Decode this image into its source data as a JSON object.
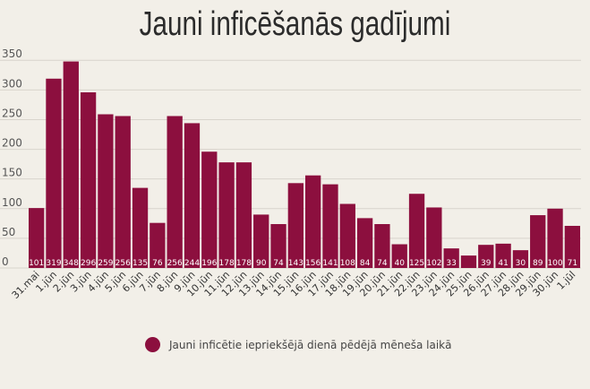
{
  "chart_data": {
    "type": "bar",
    "title": "Jauni inficēšanās gadījumi",
    "categories": [
      "31.mai",
      "1.jūn",
      "2.jūn",
      "3.jūn",
      "4.jūn",
      "5.jūn",
      "6.jūn",
      "7.jūn",
      "8.jūn",
      "9.jūn",
      "10.jūn",
      "11.jūn",
      "12.jūn",
      "13.jūn",
      "14.jūn",
      "15.jūn",
      "16.jūn",
      "17.jūn",
      "18.jūn",
      "19.jūn",
      "20.jūn",
      "21.jūn",
      "22.jūn",
      "23.jūn",
      "24.jūn",
      "25.jūn",
      "26.jūn",
      "27.jūn",
      "28.jūn",
      "29.jūn",
      "30.jūn",
      "1.jūl"
    ],
    "series": [
      {
        "name": "Jauni inficētie iepriekšējā dienā pēdējā mēneša laikā",
        "values": [
          101,
          319,
          348,
          296,
          259,
          256,
          135,
          76,
          256,
          244,
          196,
          178,
          178,
          90,
          74,
          143,
          156,
          141,
          108,
          84,
          74,
          40,
          125,
          102,
          33,
          21,
          39,
          41,
          30,
          89,
          100,
          71
        ],
        "labels": [
          "101",
          "319",
          "348",
          "296",
          "259",
          "256",
          "135",
          "76",
          "256",
          "244",
          "196",
          "178",
          "178",
          "90",
          "74",
          "143",
          "156",
          "141",
          "108",
          "84",
          "74",
          "40",
          "125",
          "102",
          "33",
          "",
          "39",
          "41",
          "30",
          "89",
          "100",
          "71"
        ]
      }
    ],
    "yticks": [
      "0",
      "50",
      "100",
      "150",
      "200",
      "250",
      "300",
      "350"
    ],
    "ytick_values": [
      0,
      50,
      100,
      150,
      200,
      250,
      300,
      350
    ],
    "ylim": [
      0,
      370
    ],
    "grid": true,
    "legend_position": "bottom",
    "colors": {
      "bar": "#8c0f3e",
      "background": "#f2efe8",
      "grid": "#d8d4cc"
    }
  }
}
